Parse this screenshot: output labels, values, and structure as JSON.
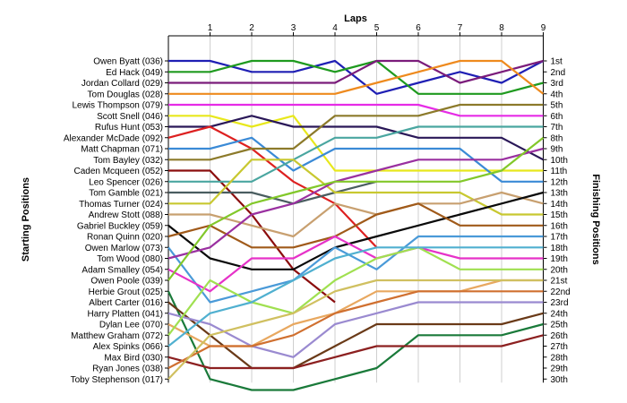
{
  "chart_data": {
    "type": "line",
    "title": "Laps",
    "ylabel_left": "Starting Positions",
    "ylabel_right": "Finishing Positions",
    "x_ticks": [
      1,
      2,
      3,
      4,
      5,
      6,
      7,
      8,
      9
    ],
    "position_labels": [
      "1st",
      "2nd",
      "3rd",
      "4th",
      "5th",
      "6th",
      "7th",
      "8th",
      "9th",
      "10th",
      "11th",
      "12th",
      "13th",
      "14th",
      "15th",
      "16th",
      "17th",
      "18th",
      "19th",
      "20th",
      "21st",
      "22nd",
      "23rd",
      "24th",
      "25th",
      "26th",
      "27th",
      "28th",
      "29th",
      "30th"
    ],
    "series": [
      {
        "name": "Owen Byatt (036)",
        "color": "#1f1fb4",
        "values": [
          1,
          1,
          2,
          2,
          1,
          4,
          3,
          2,
          3,
          1
        ]
      },
      {
        "name": "Ed Hack (049)",
        "color": "#1f9a1f",
        "values": [
          2,
          2,
          1,
          1,
          2,
          1,
          4,
          4,
          4,
          3
        ]
      },
      {
        "name": "Jordan Collard (029)",
        "color": "#7b1c7b",
        "values": [
          3,
          3,
          3,
          3,
          3,
          1,
          1,
          3,
          2,
          1
        ]
      },
      {
        "name": "Tom Douglas (028)",
        "color": "#ee8a1e",
        "values": [
          4,
          4,
          4,
          4,
          4,
          3,
          2,
          1,
          1,
          4
        ]
      },
      {
        "name": "Lewis Thompson (079)",
        "color": "#e62be6",
        "values": [
          5,
          5,
          5,
          5,
          5,
          5,
          5,
          6,
          6,
          6
        ]
      },
      {
        "name": "Scott Snell (046)",
        "color": "#e8e81c",
        "values": [
          6,
          6,
          7,
          6,
          11,
          11,
          11,
          11,
          11,
          11
        ]
      },
      {
        "name": "Rufus Hunt (053)",
        "color": "#2a1858",
        "values": [
          7,
          7,
          6,
          7,
          7,
          7,
          8,
          8,
          8,
          10
        ]
      },
      {
        "name": "Alexander McDade (092)",
        "color": "#dd2020",
        "values": [
          8,
          7,
          9,
          12,
          14,
          18
        ]
      },
      {
        "name": "Matt Chapman (071)",
        "color": "#3a8ad6",
        "values": [
          9,
          9,
          8,
          11,
          9,
          9,
          9,
          9,
          12,
          12
        ]
      },
      {
        "name": "Tom Bayley (032)",
        "color": "#8c7a2a",
        "values": [
          10,
          10,
          9,
          9,
          6,
          6,
          6,
          5,
          5,
          5
        ]
      },
      {
        "name": "Caden Mcqueen (052)",
        "color": "#8b0d0d",
        "values": [
          11,
          11,
          15,
          20,
          23
        ]
      },
      {
        "name": "Leo Spencer (026)",
        "color": "#4aa6a0",
        "values": [
          12,
          12,
          12,
          10,
          8,
          8,
          7,
          7,
          7,
          7
        ]
      },
      {
        "name": "Tom Gamble (021)",
        "color": "#4a5d60",
        "values": [
          13,
          13,
          13,
          14,
          13,
          12
        ]
      },
      {
        "name": "Thomas Turner (024)",
        "color": "#c8c830",
        "values": [
          14,
          14,
          10,
          10,
          13,
          13,
          13,
          13,
          15,
          15
        ]
      },
      {
        "name": "Andrew Stott (088)",
        "color": "#c8a070",
        "values": [
          15,
          15,
          16,
          17,
          14,
          15,
          14,
          14,
          13,
          14
        ]
      },
      {
        "name": "Gabriel Buckley (059)",
        "color": "#0a0a0a",
        "values": [
          16,
          19,
          20,
          20,
          18,
          17,
          16,
          15,
          14,
          13
        ]
      },
      {
        "name": "Ronan Quinn (020)",
        "color": "#a05a1a",
        "values": [
          17,
          16,
          18,
          18,
          17,
          15,
          14,
          16,
          16,
          16
        ]
      },
      {
        "name": "Owen Marlow (073)",
        "color": "#4a9ad8",
        "values": [
          18,
          23,
          22,
          21,
          18,
          20,
          17,
          17,
          17,
          17
        ]
      },
      {
        "name": "Tom Wood (080)",
        "color": "#9a30a0",
        "values": [
          19,
          18,
          15,
          14,
          12,
          11,
          10,
          10,
          10,
          9
        ]
      },
      {
        "name": "Adam Smalley (054)",
        "color": "#e632c8",
        "values": [
          20,
          22,
          19,
          19,
          17,
          19,
          18,
          19,
          19,
          19
        ]
      },
      {
        "name": "Owen Poole (039)",
        "color": "#82c82a",
        "values": [
          21,
          16,
          14,
          13,
          12,
          12,
          12,
          12,
          11,
          8
        ]
      },
      {
        "name": "Herbie Grout (025)",
        "color": "#1a7a3a",
        "values": [
          22,
          30,
          31,
          31,
          30,
          29,
          26,
          26,
          26,
          25
        ]
      },
      {
        "name": "Albert Carter (016)",
        "color": "#6a3a18",
        "values": [
          23,
          26,
          29,
          29,
          27,
          25,
          25,
          25,
          25,
          24
        ]
      },
      {
        "name": "Harry Platten (041)",
        "color": "#9a8ad0",
        "values": [
          24,
          25,
          27,
          28,
          25,
          24,
          23,
          23,
          23,
          23
        ]
      },
      {
        "name": "Dylan Lee (070)",
        "color": "#e8a860",
        "values": [
          25,
          27,
          27,
          25,
          24,
          22,
          22,
          22,
          21,
          21
        ]
      },
      {
        "name": "Matthew Graham (072)",
        "color": "#a0e050",
        "values": [
          26,
          21,
          23,
          24,
          21,
          19,
          18,
          20,
          20,
          20
        ]
      },
      {
        "name": "Alex Spinks (066)",
        "color": "#50b0d0",
        "values": [
          27,
          24,
          23,
          21,
          19,
          18,
          18,
          18,
          18,
          18
        ]
      },
      {
        "name": "Max Bird (030)",
        "color": "#8c2020",
        "values": [
          28,
          29,
          29,
          29,
          28,
          27,
          27,
          27,
          27,
          26
        ]
      },
      {
        "name": "Ryan Jones (038)",
        "color": "#d07030",
        "values": [
          29,
          27,
          27,
          26,
          24,
          23,
          22,
          22,
          22,
          22
        ]
      },
      {
        "name": "Toby Stephenson (017)",
        "color": "#d0c060",
        "values": [
          30,
          26,
          25,
          24,
          22,
          21,
          21,
          21,
          21,
          21
        ]
      }
    ],
    "grid": {
      "vertical": true,
      "horizontal": false
    }
  }
}
